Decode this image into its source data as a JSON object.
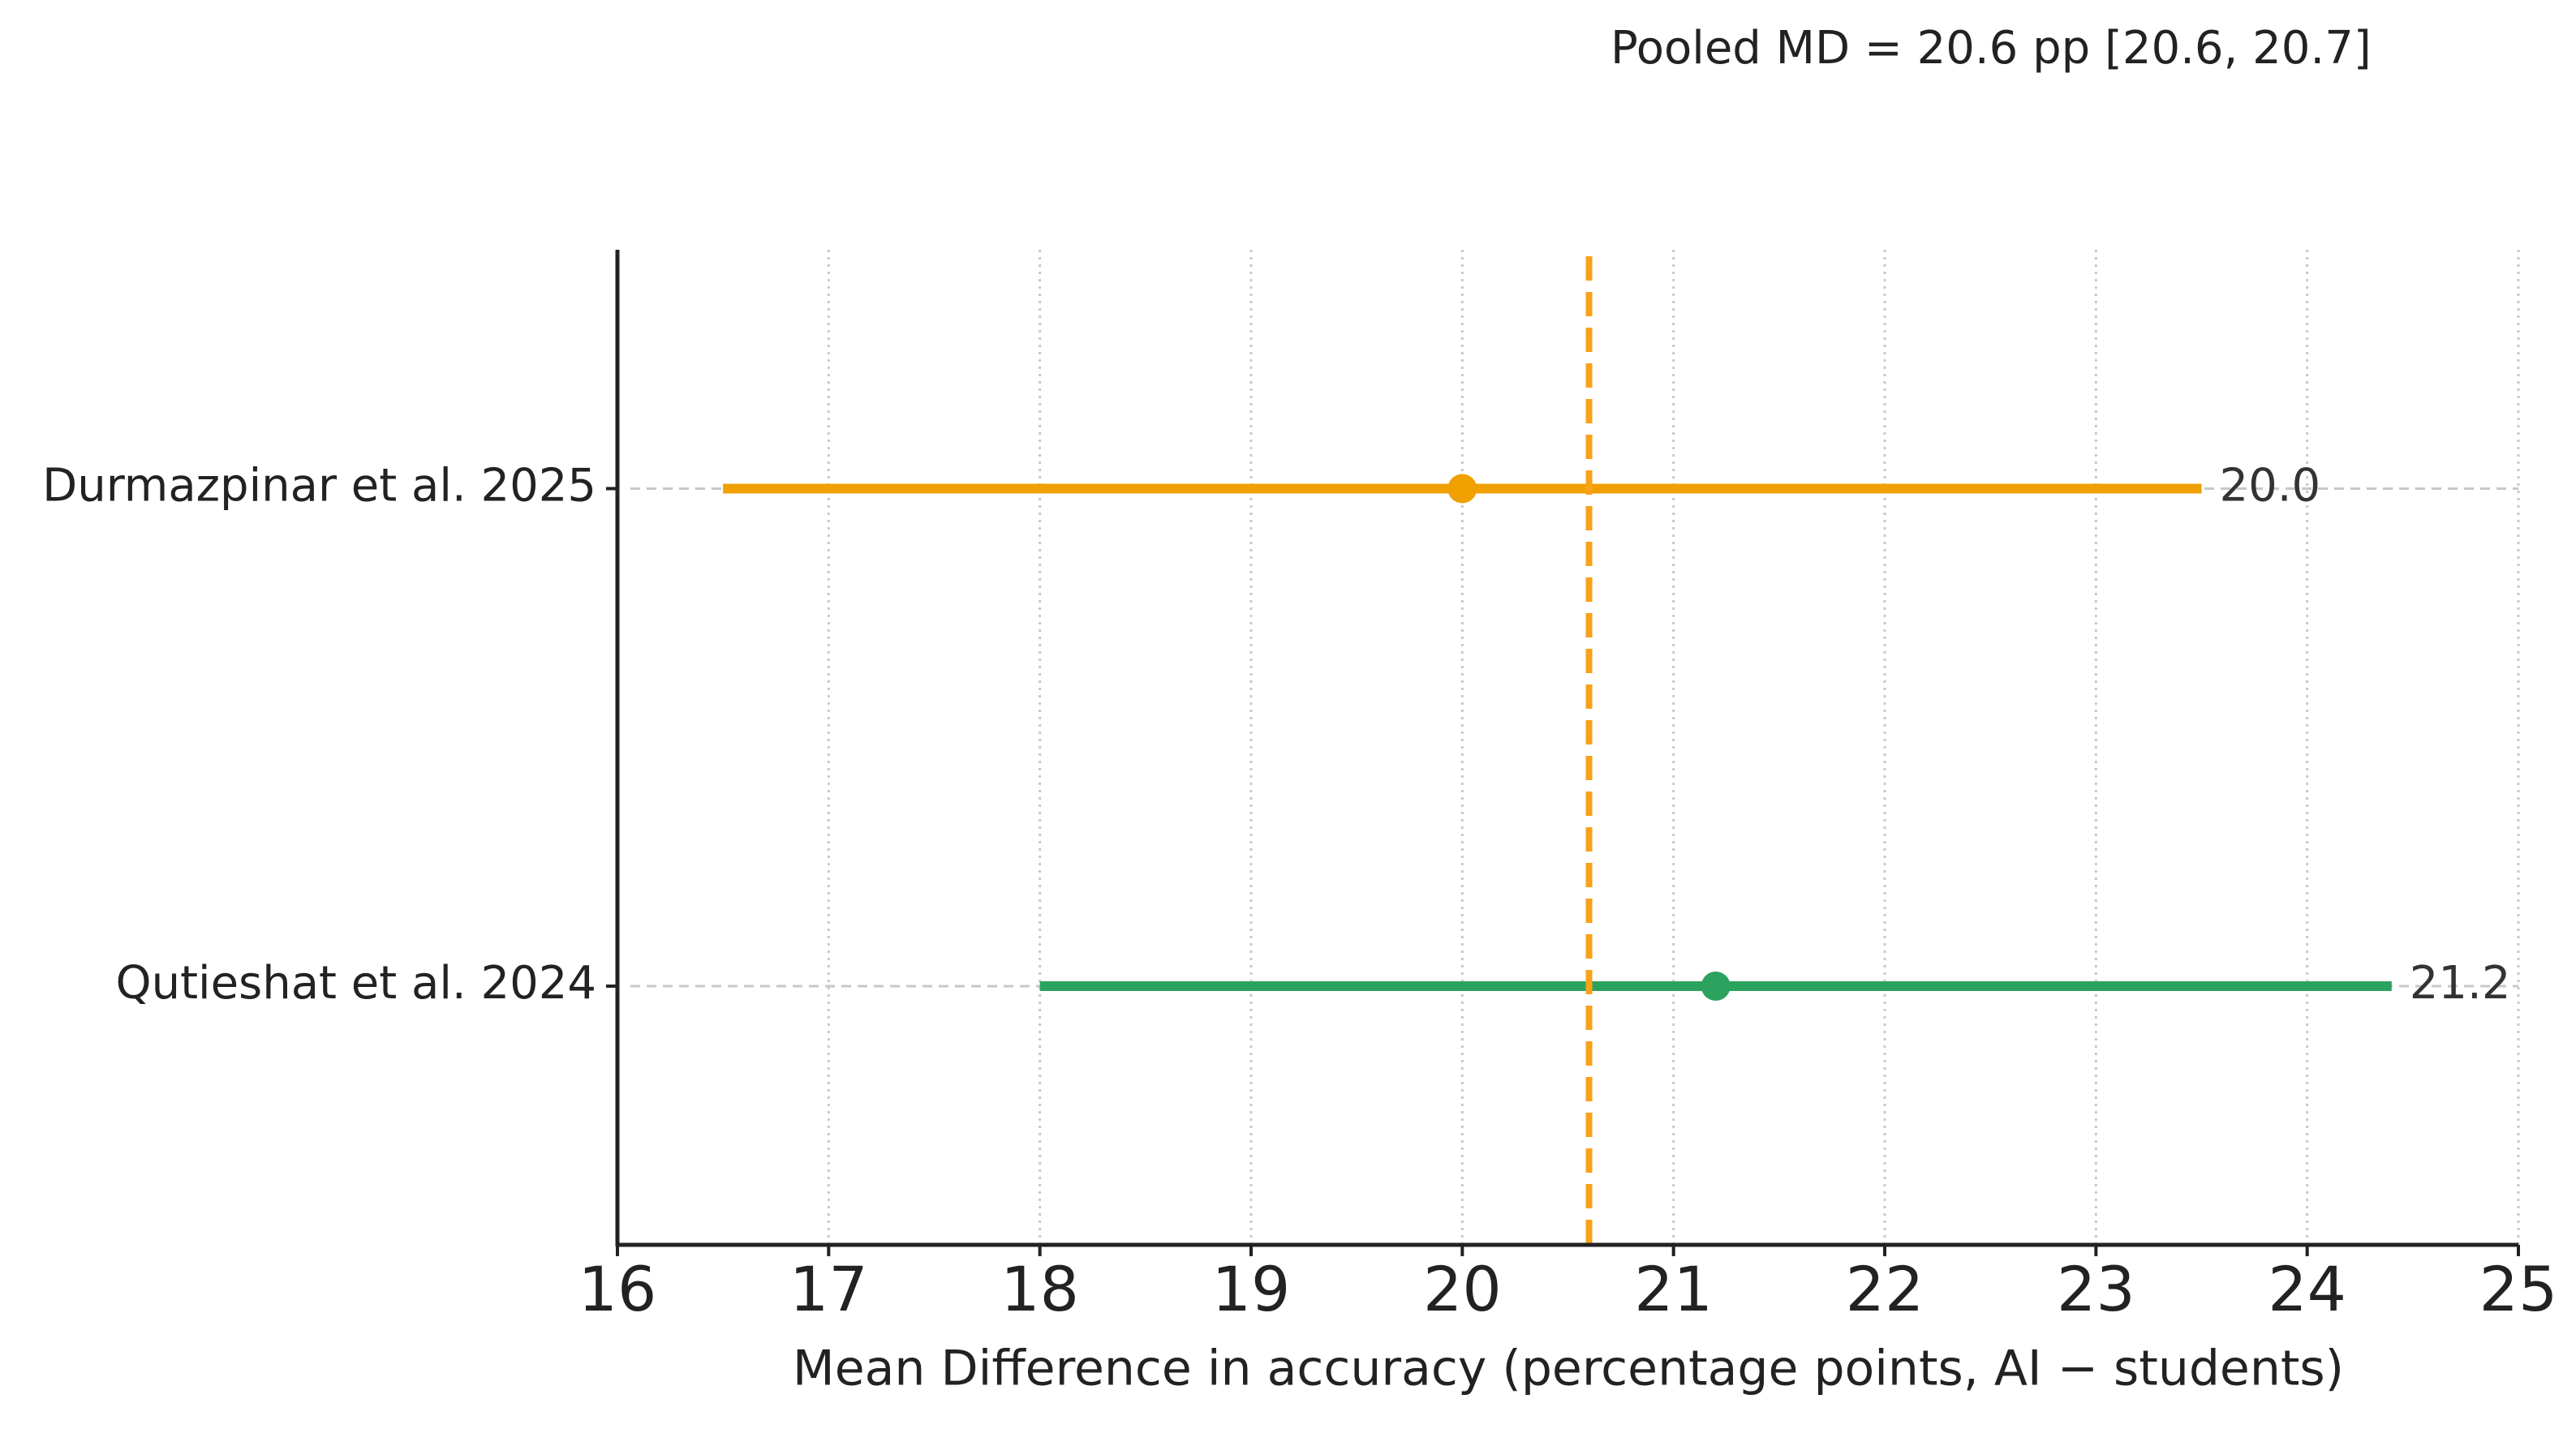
{
  "chart_data": {
    "type": "forest",
    "annotation": "Pooled MD = 20.6 pp [20.6, 20.7]",
    "xlabel": "Mean Difference in accuracy (percentage points, AI − students)",
    "categories": [
      "Durmazpinar et al. 2025",
      "Qutieshat et al. 2024"
    ],
    "values": [
      20.0,
      21.2
    ],
    "value_labels": [
      "20.0",
      "21.2"
    ],
    "lower": [
      16.5,
      18.0
    ],
    "upper": [
      23.5,
      24.4
    ],
    "colors": [
      "#f0a000",
      "#2ca25f"
    ],
    "reference_line": 20.6,
    "reference_color": "#f9a11b",
    "xlim": [
      16,
      25
    ],
    "xticks": [
      16,
      17,
      18,
      19,
      20,
      21,
      22,
      23,
      24,
      25
    ],
    "grid": true
  }
}
